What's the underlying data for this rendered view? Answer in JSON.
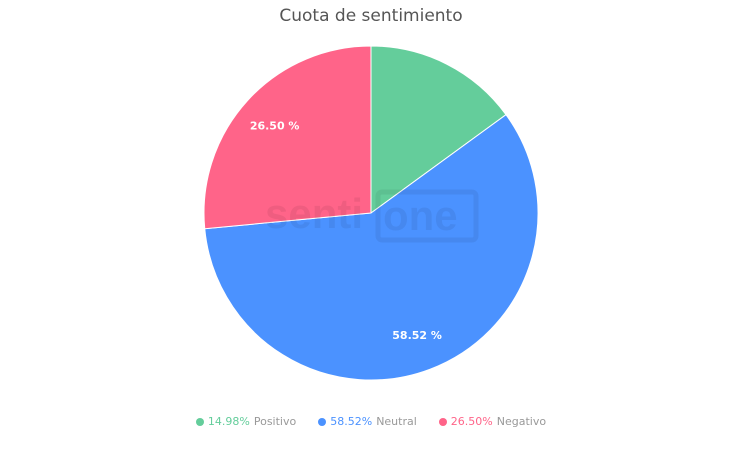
{
  "chart_data": {
    "type": "pie",
    "title": "Cuota de sentimiento",
    "start_angle_deg": 0,
    "direction": "clockwise",
    "slices": [
      {
        "name": "Positivo",
        "value": 14.98,
        "legend_value": "14.98%",
        "data_label": "",
        "color": "#64CD9B"
      },
      {
        "name": "Neutral",
        "value": 58.52,
        "legend_value": "58.52%",
        "data_label": "58.52 %",
        "color": "#4B92FF"
      },
      {
        "name": "Negativo",
        "value": 26.5,
        "legend_value": "26.50%",
        "data_label": "26.50 %",
        "color": "#FF6489"
      }
    ],
    "legend_placement": "bottom"
  },
  "watermark": "sentione"
}
